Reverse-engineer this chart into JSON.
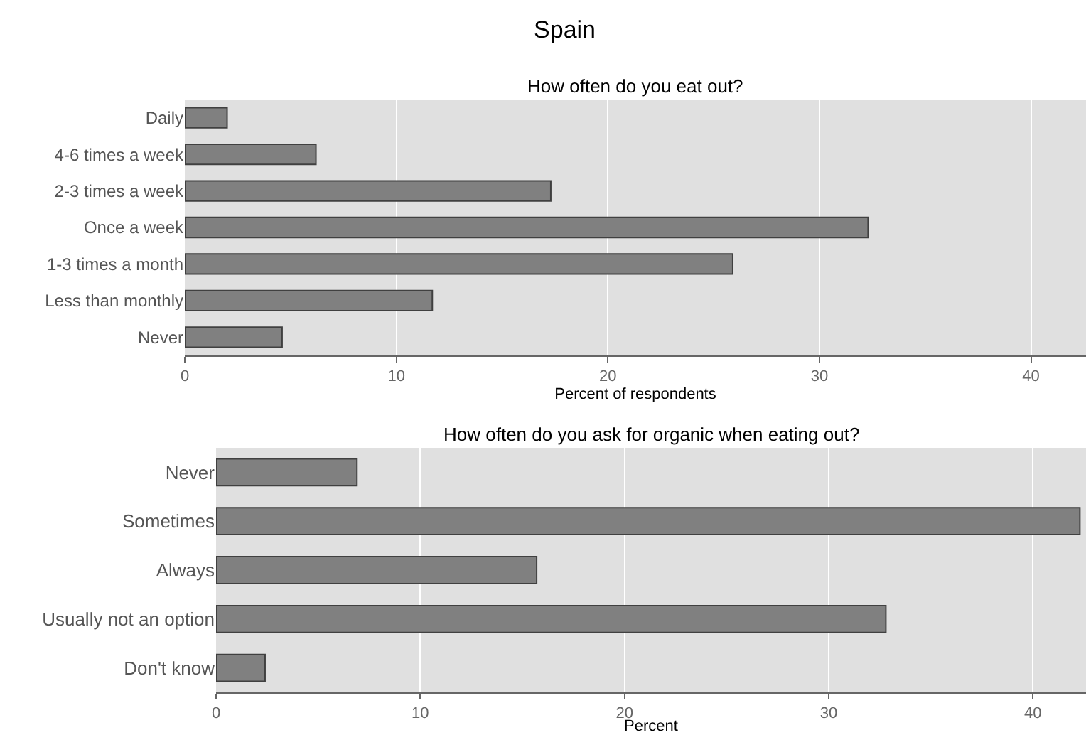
{
  "chart_data": [
    {
      "type": "bar",
      "orientation": "horizontal",
      "title": "Spain",
      "subtitle": "How often do you eat out?",
      "xlabel": "Percent of respondents",
      "categories": [
        "Daily",
        "4-6 times a week",
        "2-3 times a week",
        "Once a week",
        "1-3 times a month",
        "Less than monthly",
        "Never"
      ],
      "values": [
        2.0,
        6.2,
        17.3,
        32.3,
        25.9,
        11.7,
        4.6
      ],
      "color": "#808080",
      "xlim": [
        0,
        42.6
      ],
      "xticks": [
        0,
        10,
        20,
        30,
        40
      ],
      "grid": "x",
      "legend": false
    },
    {
      "type": "bar",
      "orientation": "horizontal",
      "title": "How often do you ask for organic when eating out?",
      "xlabel": "Percent",
      "categories": [
        "Never",
        "Sometimes",
        "Always",
        "Usually not an option",
        "Don't know"
      ],
      "values": [
        6.9,
        42.3,
        15.7,
        32.8,
        2.4
      ],
      "color": "#808080",
      "xlim": [
        0,
        42.6
      ],
      "xticks": [
        0,
        10,
        20,
        30,
        40
      ],
      "grid": "x",
      "legend": false
    }
  ]
}
